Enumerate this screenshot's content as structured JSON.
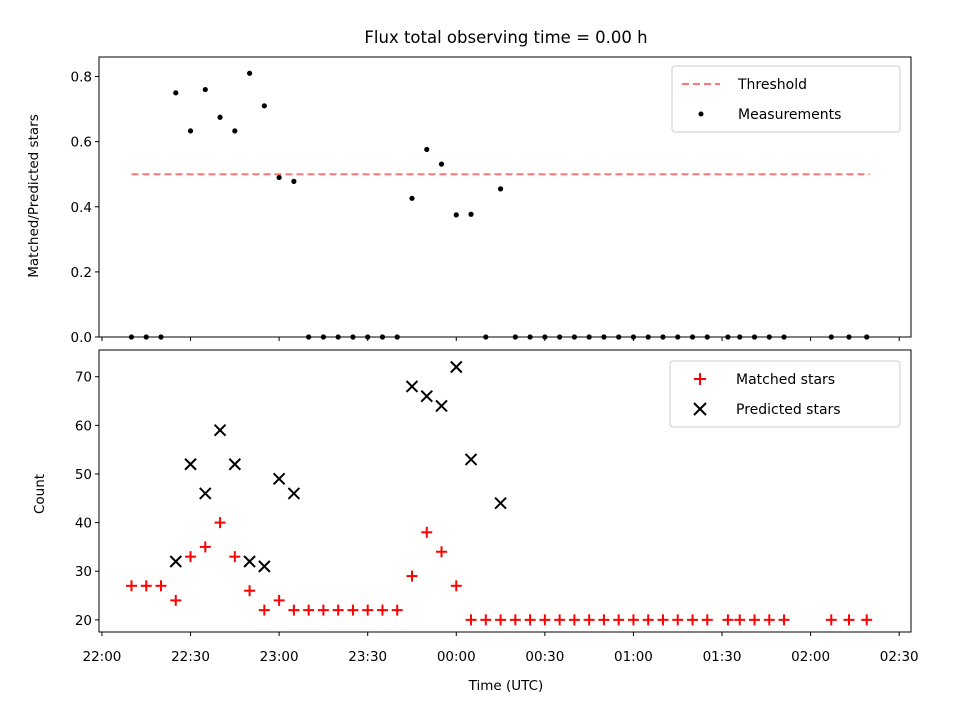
{
  "chart_data": [
    {
      "type": "scatter",
      "title": "Flux total observing time = 0.00 h",
      "xlabel": "",
      "ylabel": "Matched/Predicted stars",
      "ylim": [
        0,
        0.86
      ],
      "yticks": [
        "0.0",
        "0.2",
        "0.4",
        "0.6",
        "0.8"
      ],
      "grid": false,
      "legend_position": "top-right",
      "threshold": {
        "name": "Threshold",
        "value": 0.5,
        "x_start": "22:10",
        "x_end": "02:20",
        "color": "#ff7777"
      },
      "series": [
        {
          "name": "Measurements",
          "color": "#000000",
          "points": [
            [
              "22:10",
              0.0
            ],
            [
              "22:15",
              0.0
            ],
            [
              "22:20",
              0.0
            ],
            [
              "22:25",
              0.75
            ],
            [
              "22:30",
              0.633
            ],
            [
              "22:35",
              0.76
            ],
            [
              "22:40",
              0.675
            ],
            [
              "22:45",
              0.633
            ],
            [
              "22:50",
              0.81
            ],
            [
              "22:55",
              0.71
            ],
            [
              "23:00",
              0.49
            ],
            [
              "23:05",
              0.478
            ],
            [
              "23:10",
              0.0
            ],
            [
              "23:15",
              0.0
            ],
            [
              "23:20",
              0.0
            ],
            [
              "23:25",
              0.0
            ],
            [
              "23:30",
              0.0
            ],
            [
              "23:35",
              0.0
            ],
            [
              "23:40",
              0.0
            ],
            [
              "23:45",
              0.426
            ],
            [
              "23:50",
              0.576
            ],
            [
              "23:55",
              0.531
            ],
            [
              "00:00",
              0.375
            ],
            [
              "00:05",
              0.377
            ],
            [
              "00:10",
              0.0
            ],
            [
              "00:15",
              0.455
            ],
            [
              "00:20",
              0.0
            ],
            [
              "00:25",
              0.0
            ],
            [
              "00:30",
              0.0
            ],
            [
              "00:35",
              0.0
            ],
            [
              "00:40",
              0.0
            ],
            [
              "00:45",
              0.0
            ],
            [
              "00:50",
              0.0
            ],
            [
              "00:55",
              0.0
            ],
            [
              "01:00",
              0.0
            ],
            [
              "01:05",
              0.0
            ],
            [
              "01:10",
              0.0
            ],
            [
              "01:15",
              0.0
            ],
            [
              "01:20",
              0.0
            ],
            [
              "01:25",
              0.0
            ],
            [
              "01:32",
              0.0
            ],
            [
              "01:36",
              0.0
            ],
            [
              "01:41",
              0.0
            ],
            [
              "01:46",
              0.0
            ],
            [
              "01:51",
              0.0
            ],
            [
              "02:07",
              0.0
            ],
            [
              "02:13",
              0.0
            ],
            [
              "02:19",
              0.0
            ]
          ]
        }
      ]
    },
    {
      "type": "scatter",
      "xlabel": "Time (UTC)",
      "ylabel": "Count",
      "ylim": [
        17.5,
        75.5
      ],
      "yticks": [
        "20",
        "30",
        "40",
        "50",
        "60",
        "70"
      ],
      "xticks": [
        "22:00",
        "22:30",
        "23:00",
        "23:30",
        "00:00",
        "00:30",
        "01:00",
        "01:30",
        "02:00",
        "02:30"
      ],
      "grid": false,
      "legend_position": "top-right",
      "series": [
        {
          "name": "Matched stars",
          "marker": "+",
          "color": "#ff0000",
          "points": [
            [
              "22:10",
              27
            ],
            [
              "22:15",
              27
            ],
            [
              "22:20",
              27
            ],
            [
              "22:25",
              24
            ],
            [
              "22:30",
              33
            ],
            [
              "22:35",
              35
            ],
            [
              "22:40",
              40
            ],
            [
              "22:45",
              33
            ],
            [
              "22:50",
              26
            ],
            [
              "22:55",
              22
            ],
            [
              "23:00",
              24
            ],
            [
              "23:05",
              22
            ],
            [
              "23:10",
              22
            ],
            [
              "23:15",
              22
            ],
            [
              "23:20",
              22
            ],
            [
              "23:25",
              22
            ],
            [
              "23:30",
              22
            ],
            [
              "23:35",
              22
            ],
            [
              "23:40",
              22
            ],
            [
              "23:45",
              29
            ],
            [
              "23:50",
              38
            ],
            [
              "23:55",
              34
            ],
            [
              "00:00",
              27
            ],
            [
              "00:05",
              20
            ],
            [
              "00:10",
              20
            ],
            [
              "00:15",
              20
            ],
            [
              "00:20",
              20
            ],
            [
              "00:25",
              20
            ],
            [
              "00:30",
              20
            ],
            [
              "00:35",
              20
            ],
            [
              "00:40",
              20
            ],
            [
              "00:45",
              20
            ],
            [
              "00:50",
              20
            ],
            [
              "00:55",
              20
            ],
            [
              "01:00",
              20
            ],
            [
              "01:05",
              20
            ],
            [
              "01:10",
              20
            ],
            [
              "01:15",
              20
            ],
            [
              "01:20",
              20
            ],
            [
              "01:25",
              20
            ],
            [
              "01:32",
              20
            ],
            [
              "01:36",
              20
            ],
            [
              "01:41",
              20
            ],
            [
              "01:46",
              20
            ],
            [
              "01:51",
              20
            ],
            [
              "02:07",
              20
            ],
            [
              "02:13",
              20
            ],
            [
              "02:19",
              20
            ]
          ]
        },
        {
          "name": "Predicted stars",
          "marker": "x",
          "color": "#000000",
          "points": [
            [
              "22:25",
              32
            ],
            [
              "22:30",
              52
            ],
            [
              "22:35",
              46
            ],
            [
              "22:40",
              59
            ],
            [
              "22:45",
              52
            ],
            [
              "22:50",
              32
            ],
            [
              "22:55",
              31
            ],
            [
              "23:00",
              49
            ],
            [
              "23:05",
              46
            ],
            [
              "23:45",
              68
            ],
            [
              "23:50",
              66
            ],
            [
              "23:55",
              64
            ],
            [
              "00:00",
              72
            ],
            [
              "00:05",
              53
            ],
            [
              "00:15",
              44
            ]
          ]
        }
      ]
    }
  ]
}
